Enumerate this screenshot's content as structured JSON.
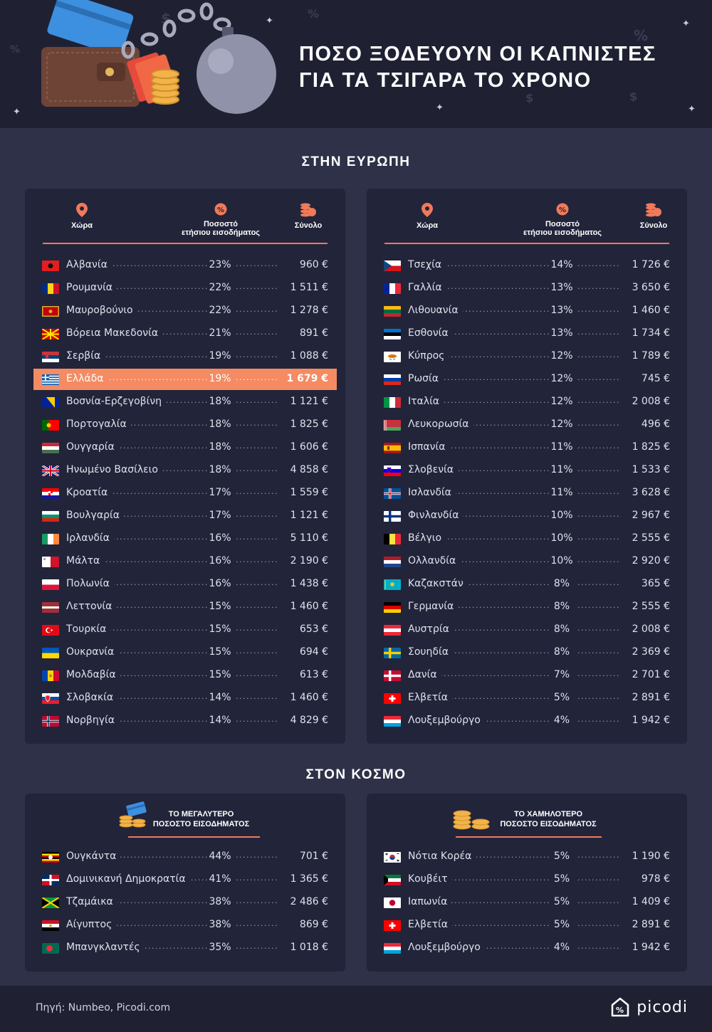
{
  "header": {
    "title_line1": "ΠΟΣΟ ΞΟΔΕΥΟΥΝ ΟΙ ΚΑΠΝΙΣΤΕΣ",
    "title_line2": "ΓΙΑ ΤΑ ΤΣΙΓΑΡΑ ΤΟ ΧΡΟΝΟ"
  },
  "europe": {
    "title": "ΣΤΗΝ ΕΥΡΩΠΗ",
    "col_country": "Χώρα",
    "col_pct_line1": "Ποσοστό",
    "col_pct_line2": "ετήσιου εισοδήματος",
    "col_total": "Σύνολο",
    "left": [
      {
        "name": "Αλβανία",
        "pct": "23%",
        "total": "960 €",
        "flag": "al"
      },
      {
        "name": "Ρουμανία",
        "pct": "22%",
        "total": "1 511 €",
        "flag": "ro"
      },
      {
        "name": "Μαυροβούνιο",
        "pct": "22%",
        "total": "1 278 €",
        "flag": "me"
      },
      {
        "name": "Βόρεια Μακεδονία",
        "pct": "21%",
        "total": "891 €",
        "flag": "mk"
      },
      {
        "name": "Σερβία",
        "pct": "19%",
        "total": "1 088 €",
        "flag": "rs"
      },
      {
        "name": "Ελλάδα",
        "pct": "19%",
        "total": "1 679 €",
        "flag": "gr",
        "highlight": true
      },
      {
        "name": "Βοσνία-Ερζεγοβίνη",
        "pct": "18%",
        "total": "1 121 €",
        "flag": "ba"
      },
      {
        "name": "Πορτογαλία",
        "pct": "18%",
        "total": "1 825 €",
        "flag": "pt"
      },
      {
        "name": "Ουγγαρία",
        "pct": "18%",
        "total": "1 606 €",
        "flag": "hu"
      },
      {
        "name": "Ηνωμένο Βασίλειο",
        "pct": "18%",
        "total": "4 858 €",
        "flag": "gb"
      },
      {
        "name": "Κροατία",
        "pct": "17%",
        "total": "1 559 €",
        "flag": "hr"
      },
      {
        "name": "Βουλγαρία",
        "pct": "17%",
        "total": "1 121 €",
        "flag": "bg"
      },
      {
        "name": "Ιρλανδία",
        "pct": "16%",
        "total": "5 110 €",
        "flag": "ie"
      },
      {
        "name": "Μάλτα",
        "pct": "16%",
        "total": "2 190 €",
        "flag": "mt"
      },
      {
        "name": "Πολωνία",
        "pct": "16%",
        "total": "1 438 €",
        "flag": "pl"
      },
      {
        "name": "Λεττονία",
        "pct": "15%",
        "total": "1 460 €",
        "flag": "lv"
      },
      {
        "name": "Τουρκία",
        "pct": "15%",
        "total": "653 €",
        "flag": "tr"
      },
      {
        "name": "Ουκρανία",
        "pct": "15%",
        "total": "694 €",
        "flag": "ua"
      },
      {
        "name": "Μολδαβία",
        "pct": "15%",
        "total": "613 €",
        "flag": "md"
      },
      {
        "name": "Σλοβακία",
        "pct": "14%",
        "total": "1 460 €",
        "flag": "sk"
      },
      {
        "name": "Νορβηγία",
        "pct": "14%",
        "total": "4 829 €",
        "flag": "no"
      }
    ],
    "right": [
      {
        "name": "Τσεχία",
        "pct": "14%",
        "total": "1 726 €",
        "flag": "cz"
      },
      {
        "name": "Γαλλία",
        "pct": "13%",
        "total": "3 650 €",
        "flag": "fr"
      },
      {
        "name": "Λιθουανία",
        "pct": "13%",
        "total": "1 460 €",
        "flag": "lt"
      },
      {
        "name": "Εσθονία",
        "pct": "13%",
        "total": "1 734 €",
        "flag": "ee"
      },
      {
        "name": "Κύπρος",
        "pct": "12%",
        "total": "1 789 €",
        "flag": "cy"
      },
      {
        "name": "Ρωσία",
        "pct": "12%",
        "total": "745 €",
        "flag": "ru"
      },
      {
        "name": "Ιταλία",
        "pct": "12%",
        "total": "2 008 €",
        "flag": "it"
      },
      {
        "name": "Λευκορωσία",
        "pct": "12%",
        "total": "496 €",
        "flag": "by"
      },
      {
        "name": "Ισπανία",
        "pct": "11%",
        "total": "1 825 €",
        "flag": "es"
      },
      {
        "name": "Σλοβενία",
        "pct": "11%",
        "total": "1 533 €",
        "flag": "si"
      },
      {
        "name": "Ισλανδία",
        "pct": "11%",
        "total": "3 628 €",
        "flag": "is"
      },
      {
        "name": "Φινλανδία",
        "pct": "10%",
        "total": "2 967 €",
        "flag": "fi"
      },
      {
        "name": "Βέλγιο",
        "pct": "10%",
        "total": "2 555 €",
        "flag": "be"
      },
      {
        "name": "Ολλανδία",
        "pct": "10%",
        "total": "2 920 €",
        "flag": "nl"
      },
      {
        "name": "Καζακστάν",
        "pct": "8%",
        "total": "365 €",
        "flag": "kz"
      },
      {
        "name": "Γερμανία",
        "pct": "8%",
        "total": "2 555 €",
        "flag": "de"
      },
      {
        "name": "Αυστρία",
        "pct": "8%",
        "total": "2 008 €",
        "flag": "at"
      },
      {
        "name": "Σουηδία",
        "pct": "8%",
        "total": "2 369 €",
        "flag": "se"
      },
      {
        "name": "Δανία",
        "pct": "7%",
        "total": "2 701 €",
        "flag": "dk"
      },
      {
        "name": "Ελβετία",
        "pct": "5%",
        "total": "2 891 €",
        "flag": "ch"
      },
      {
        "name": "Λουξεμβούργο",
        "pct": "4%",
        "total": "1 942 €",
        "flag": "lu"
      }
    ]
  },
  "world": {
    "title": "ΣΤΟΝ ΚΟΣΜΟ",
    "highest_line1": "ΤΟ ΜΕΓΑΛΥΤΕΡΟ",
    "highest_line2": "ΠΟΣΟΣΤΟ ΕΙΣΟΔΗΜΑΤΟΣ",
    "lowest_line1": "ΤΟ ΧΑΜΗΛΟΤΕΡΟ",
    "lowest_line2": "ΠΟΣΟΣΤΟ ΕΙΣΟΔΗΜΑΤΟΣ",
    "highest": [
      {
        "name": "Ουγκάντα",
        "pct": "44%",
        "total": "701 €",
        "flag": "ug"
      },
      {
        "name": "Δομινικανή Δημοκρατία",
        "pct": "41%",
        "total": "1 365 €",
        "flag": "do"
      },
      {
        "name": "Τζαμάικα",
        "pct": "38%",
        "total": "2 486 €",
        "flag": "jm"
      },
      {
        "name": "Αίγυπτος",
        "pct": "38%",
        "total": "869 €",
        "flag": "eg"
      },
      {
        "name": "Μπανγκλαντές",
        "pct": "35%",
        "total": "1 018 €",
        "flag": "bd"
      }
    ],
    "lowest": [
      {
        "name": "Νότια Κορέα",
        "pct": "5%",
        "total": "1 190 €",
        "flag": "kr"
      },
      {
        "name": "Κουβέιτ",
        "pct": "5%",
        "total": "978 €",
        "flag": "kw"
      },
      {
        "name": "Ιαπωνία",
        "pct": "5%",
        "total": "1 409 €",
        "flag": "jp"
      },
      {
        "name": "Ελβετία",
        "pct": "5%",
        "total": "2 891 €",
        "flag": "ch"
      },
      {
        "name": "Λουξεμβούργο",
        "pct": "4%",
        "total": "1 942 €",
        "flag": "lu"
      }
    ]
  },
  "footer": {
    "source": "Πηγή: Numbeo, Picodi.com",
    "logo": "picodi"
  },
  "colors": {
    "accent": "#f07a5a",
    "highlight_row": "#f48b63",
    "panel": "#22243a",
    "background": "#2e3147",
    "header": "#1f2133"
  }
}
